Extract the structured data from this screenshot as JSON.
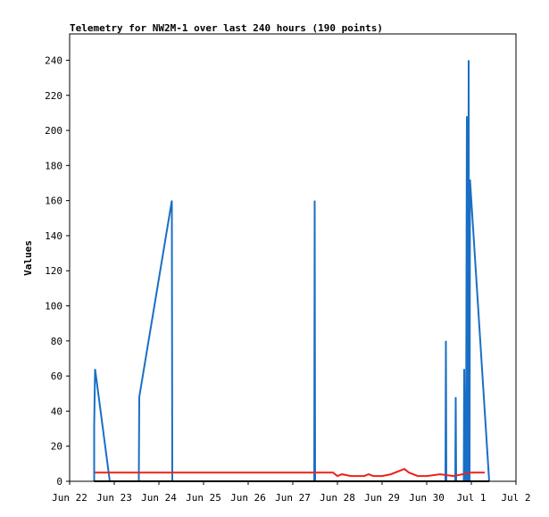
{
  "chart_data": {
    "type": "line",
    "title": "Telemetry for NW2M-1 over last 240 hours (190 points)",
    "xlabel": "",
    "ylabel": "Values",
    "xlim": [
      0,
      10
    ],
    "ylim": [
      0,
      255
    ],
    "x_ticks": [
      {
        "v": 0,
        "label": "Jun 22"
      },
      {
        "v": 1,
        "label": "Jun 23"
      },
      {
        "v": 2,
        "label": "Jun 24"
      },
      {
        "v": 3,
        "label": "Jun 25"
      },
      {
        "v": 4,
        "label": "Jun 26"
      },
      {
        "v": 5,
        "label": "Jun 27"
      },
      {
        "v": 6,
        "label": "Jun 28"
      },
      {
        "v": 7,
        "label": "Jun 29"
      },
      {
        "v": 8,
        "label": "Jun 30"
      },
      {
        "v": 9,
        "label": "Jul 1"
      },
      {
        "v": 10,
        "label": "Jul 2"
      }
    ],
    "y_ticks": [
      0,
      20,
      40,
      60,
      80,
      100,
      120,
      140,
      160,
      180,
      200,
      220,
      240
    ],
    "grid": false,
    "series": [
      {
        "color": "#1a6fc4",
        "points": [
          [
            0.55,
            0
          ],
          [
            0.55,
            32
          ],
          [
            0.57,
            64
          ],
          [
            0.9,
            0
          ],
          [
            1.55,
            0
          ],
          [
            1.56,
            48
          ],
          [
            2.29,
            160
          ],
          [
            2.3,
            0
          ],
          [
            5.48,
            0
          ],
          [
            5.49,
            160
          ],
          [
            5.5,
            0
          ],
          [
            8.42,
            0
          ],
          [
            8.43,
            80
          ],
          [
            8.44,
            0
          ],
          [
            8.64,
            0
          ],
          [
            8.65,
            48
          ],
          [
            8.66,
            0
          ],
          [
            8.83,
            0
          ],
          [
            8.84,
            64
          ],
          [
            8.86,
            0
          ],
          [
            8.88,
            0
          ],
          [
            8.89,
            104
          ],
          [
            8.9,
            208
          ],
          [
            8.91,
            0
          ],
          [
            8.93,
            0
          ],
          [
            8.94,
            240
          ],
          [
            8.95,
            0
          ],
          [
            8.96,
            0
          ],
          [
            8.97,
            172
          ],
          [
            9.4,
            0
          ]
        ]
      },
      {
        "color": "#e8241c",
        "points": [
          [
            0.57,
            5
          ],
          [
            5.9,
            5
          ],
          [
            6.0,
            3
          ],
          [
            6.1,
            4
          ],
          [
            6.3,
            3
          ],
          [
            6.6,
            3
          ],
          [
            6.7,
            4
          ],
          [
            6.8,
            3
          ],
          [
            7.0,
            3
          ],
          [
            7.2,
            4
          ],
          [
            7.5,
            7
          ],
          [
            7.6,
            5
          ],
          [
            7.8,
            3
          ],
          [
            8.0,
            3
          ],
          [
            8.3,
            4
          ],
          [
            8.6,
            3
          ],
          [
            9.0,
            5
          ],
          [
            9.3,
            5
          ]
        ]
      },
      {
        "color": "#000000",
        "points": [
          [
            0.55,
            0
          ],
          [
            9.4,
            0
          ]
        ]
      }
    ]
  }
}
